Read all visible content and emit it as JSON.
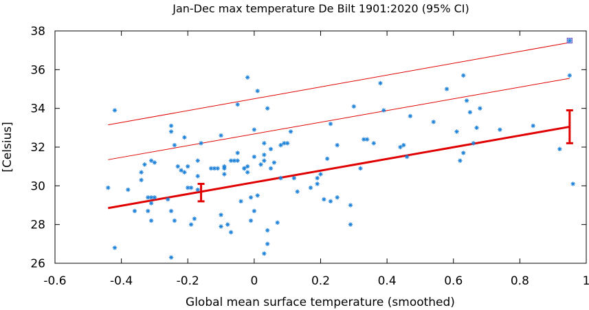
{
  "chart_data": {
    "type": "scatter",
    "title": "Jan-Dec max temperature De Bilt 1901:2020 (95% CI)",
    "xlabel": "Global mean surface temperature (smoothed)",
    "ylabel": "[Celsius]",
    "xlim": [
      -0.6,
      1.0
    ],
    "ylim": [
      26,
      38
    ],
    "xticks": [
      "-0.6",
      "-0.4",
      "-0.2",
      "0",
      "0.2",
      "0.4",
      "0.6",
      "0.8",
      "1"
    ],
    "yticks": [
      "26",
      "28",
      "30",
      "32",
      "34",
      "36",
      "38"
    ],
    "grid": false,
    "legend": "none",
    "colors": {
      "points": "#1a7fd8",
      "fit": "#e00000",
      "highlight": "#6a5acd"
    },
    "points": [
      [
        -0.44,
        29.9
      ],
      [
        -0.42,
        33.9
      ],
      [
        -0.42,
        26.8
      ],
      [
        -0.38,
        29.8
      ],
      [
        -0.36,
        28.7
      ],
      [
        -0.34,
        30.3
      ],
      [
        -0.34,
        30.7
      ],
      [
        -0.33,
        31.1
      ],
      [
        -0.32,
        28.7
      ],
      [
        -0.32,
        29.4
      ],
      [
        -0.31,
        31.3
      ],
      [
        -0.31,
        29.4
      ],
      [
        -0.31,
        28.2
      ],
      [
        -0.31,
        29.1
      ],
      [
        -0.3,
        31.2
      ],
      [
        -0.3,
        29.4
      ],
      [
        -0.26,
        29.3
      ],
      [
        -0.25,
        28.7
      ],
      [
        -0.25,
        26.3
      ],
      [
        -0.25,
        33.1
      ],
      [
        -0.25,
        32.8
      ],
      [
        -0.24,
        32.1
      ],
      [
        -0.24,
        28.2
      ],
      [
        -0.23,
        31.0
      ],
      [
        -0.22,
        30.8
      ],
      [
        -0.21,
        32.5
      ],
      [
        -0.21,
        30.7
      ],
      [
        -0.2,
        31.0
      ],
      [
        -0.2,
        29.9
      ],
      [
        -0.19,
        29.9
      ],
      [
        -0.19,
        28.0
      ],
      [
        -0.18,
        28.3
      ],
      [
        -0.17,
        29.8
      ],
      [
        -0.17,
        30.5
      ],
      [
        -0.17,
        31.3
      ],
      [
        -0.16,
        32.2
      ],
      [
        -0.13,
        30.9
      ],
      [
        -0.12,
        30.9
      ],
      [
        -0.11,
        30.9
      ],
      [
        -0.1,
        32.6
      ],
      [
        -0.1,
        28.5
      ],
      [
        -0.1,
        27.9
      ],
      [
        -0.09,
        30.9
      ],
      [
        -0.09,
        31.0
      ],
      [
        -0.09,
        30.6
      ],
      [
        -0.08,
        28.0
      ],
      [
        -0.07,
        31.3
      ],
      [
        -0.07,
        27.6
      ],
      [
        -0.06,
        31.3
      ],
      [
        -0.05,
        31.7
      ],
      [
        -0.05,
        34.2
      ],
      [
        -0.05,
        31.3
      ],
      [
        -0.04,
        29.2
      ],
      [
        -0.03,
        30.9
      ],
      [
        -0.03,
        30.9
      ],
      [
        -0.02,
        30.7
      ],
      [
        -0.02,
        35.6
      ],
      [
        -0.02,
        31.0
      ],
      [
        -0.01,
        29.4
      ],
      [
        -0.01,
        28.2
      ],
      [
        0.0,
        28.7
      ],
      [
        0.0,
        31.5
      ],
      [
        0.0,
        32.9
      ],
      [
        0.01,
        34.9
      ],
      [
        0.01,
        29.5
      ],
      [
        0.02,
        31.1
      ],
      [
        0.03,
        31.6
      ],
      [
        0.03,
        32.2
      ],
      [
        0.03,
        31.3
      ],
      [
        0.03,
        26.5
      ],
      [
        0.04,
        34.0
      ],
      [
        0.04,
        27.0
      ],
      [
        0.04,
        27.7
      ],
      [
        0.05,
        30.9
      ],
      [
        0.05,
        31.9
      ],
      [
        0.06,
        31.2
      ],
      [
        0.07,
        28.1
      ],
      [
        0.08,
        30.4
      ],
      [
        0.08,
        32.1
      ],
      [
        0.09,
        32.2
      ],
      [
        0.1,
        32.2
      ],
      [
        0.11,
        32.8
      ],
      [
        0.12,
        30.4
      ],
      [
        0.13,
        29.7
      ],
      [
        0.17,
        29.9
      ],
      [
        0.19,
        30.4
      ],
      [
        0.19,
        30.1
      ],
      [
        0.2,
        30.6
      ],
      [
        0.21,
        29.3
      ],
      [
        0.22,
        31.4
      ],
      [
        0.23,
        33.2
      ],
      [
        0.23,
        29.2
      ],
      [
        0.25,
        32.1
      ],
      [
        0.25,
        29.4
      ],
      [
        0.29,
        29.0
      ],
      [
        0.29,
        28.0
      ],
      [
        0.3,
        34.1
      ],
      [
        0.32,
        30.9
      ],
      [
        0.33,
        32.4
      ],
      [
        0.34,
        32.4
      ],
      [
        0.36,
        32.2
      ],
      [
        0.38,
        35.3
      ],
      [
        0.39,
        33.9
      ],
      [
        0.44,
        32.0
      ],
      [
        0.45,
        32.1
      ],
      [
        0.46,
        31.5
      ],
      [
        0.47,
        33.6
      ],
      [
        0.54,
        33.3
      ],
      [
        0.58,
        35.0
      ],
      [
        0.61,
        32.8
      ],
      [
        0.62,
        31.3
      ],
      [
        0.63,
        31.7
      ],
      [
        0.63,
        35.7
      ],
      [
        0.64,
        34.4
      ],
      [
        0.65,
        33.8
      ],
      [
        0.66,
        32.2
      ],
      [
        0.67,
        33.0
      ],
      [
        0.68,
        34.0
      ],
      [
        0.74,
        32.9
      ],
      [
        0.84,
        33.1
      ],
      [
        0.92,
        31.9
      ],
      [
        0.95,
        37.5
      ],
      [
        0.95,
        35.7
      ],
      [
        0.96,
        30.1
      ]
    ],
    "fit": {
      "x": [
        -0.44,
        0.95
      ],
      "y": [
        28.85,
        33.05
      ]
    },
    "upper_band_1": {
      "x": [
        -0.44,
        0.95
      ],
      "y": [
        31.35,
        35.55
      ]
    },
    "upper_band_2": {
      "x": [
        -0.44,
        0.95
      ],
      "y": [
        33.15,
        37.4
      ]
    },
    "error_bars": [
      {
        "x": -0.16,
        "y_low": 29.2,
        "y_high": 30.1
      },
      {
        "x": 0.95,
        "y_low": 32.2,
        "y_high": 33.9
      }
    ],
    "highlight_point": [
      0.95,
      37.5
    ]
  }
}
